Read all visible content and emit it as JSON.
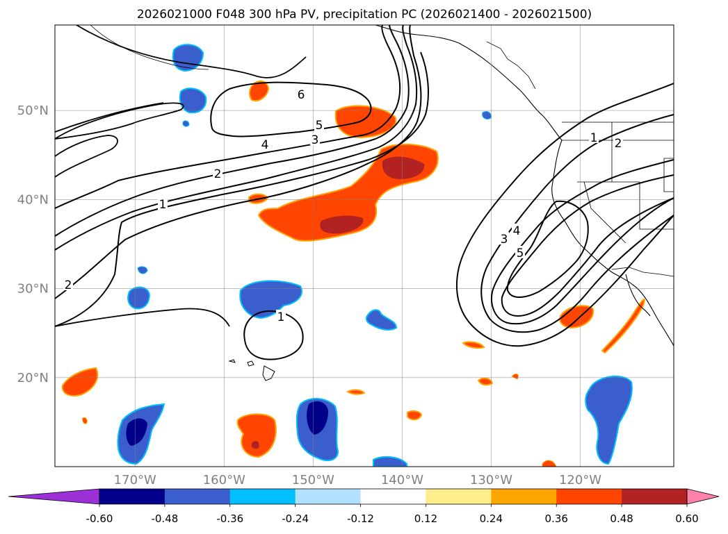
{
  "title": "2026021000 F048 300 hPa PV, precipitation PC (2026021400 - 2026021500)",
  "axes": {
    "lon_ticks": [
      "170°W",
      "160°W",
      "150°W",
      "140°W",
      "130°W",
      "120°W"
    ],
    "lat_ticks": [
      "50°N",
      "40°N",
      "30°N",
      "20°N"
    ],
    "lon_values": [
      -170,
      -160,
      -150,
      -140,
      -130,
      -120
    ],
    "lat_values": [
      50,
      40,
      30,
      20
    ],
    "lon_range": [
      -179,
      -109.5
    ],
    "lat_range": [
      10,
      59.6
    ],
    "grid": true
  },
  "pv_contour_labels": [
    "1",
    "2",
    "3",
    "4",
    "5",
    "6",
    "1",
    "2",
    "3",
    "4",
    "5",
    "1",
    "2"
  ],
  "colorbar": {
    "ticks": [
      "-0.60",
      "-0.48",
      "-0.36",
      "-0.24",
      "-0.12",
      "0.12",
      "0.24",
      "0.36",
      "0.48",
      "0.60"
    ],
    "colors": {
      "under": "#9b30d6",
      "bins": [
        "#00008b",
        "#3a5fcd",
        "#00bfff",
        "#b0e2ff",
        "#ffffff",
        "#ffec8b",
        "#ffa500",
        "#ff4500",
        "#b22222"
      ],
      "over": "#ff82ab"
    }
  }
}
